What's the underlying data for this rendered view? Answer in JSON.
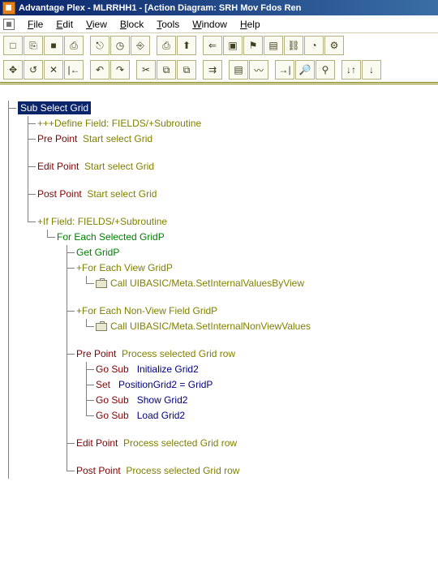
{
  "title": "Advantage Plex - MLRRHH1 - [Action Diagram: SRH Mov Fdos Ren",
  "menu": {
    "file": "File",
    "edit": "Edit",
    "view": "View",
    "block": "Block",
    "tools": "Tools",
    "window": "Window",
    "help": "Help"
  },
  "tb1": [
    "□",
    "⎘",
    "■",
    "⎙",
    "",
    "⎋",
    "◷",
    "⎆",
    "",
    "⎙",
    "⬆",
    "",
    "⇐",
    "▣",
    "⚑",
    "▤",
    "⛓",
    "◔",
    "⚙"
  ],
  "tb2": [
    "✥",
    "↺",
    "✕",
    "|←",
    "",
    "↶",
    "↷",
    "",
    "✂",
    "⧉",
    "⧉",
    "",
    "⇉",
    "",
    "▤",
    "〰",
    "",
    "→|",
    "🔎",
    "⚲",
    "",
    "↓↑",
    "↓"
  ],
  "root": {
    "sub_label": "Sub   Select Grid",
    "define": "+++Define   Field: FIELDS/+Subroutine",
    "pre_point": "Pre Point",
    "pre_point_txt": "Start select Grid",
    "edit_point": "Edit Point",
    "edit_point_txt": "Start select Grid",
    "post_point": "Post Point",
    "post_point_txt": "Start select Grid",
    "if_line": "+If   Field: FIELDS/+Subroutine",
    "for_each_sel": "For Each Selected   GridP",
    "get": "Get   GridP",
    "for_each_view": "+For Each View   GridP",
    "call1": "Call   UIBASIC/Meta.SetInternalValuesByView",
    "for_each_nv": "+For Each Non-View Field   GridP",
    "call2": "Call   UIBASIC/Meta.SetInternalNonViewValues",
    "pre2": "Pre Point",
    "pre2_txt": "Process selected Grid row",
    "gs1_k": "Go Sub",
    "gs1_v": "Initialize Grid2",
    "set_k": "Set",
    "set_v": "PositionGrid2 = GridP",
    "gs2_k": "Go Sub",
    "gs2_v": "Show Grid2",
    "gs3_k": "Go Sub",
    "gs3_v": "Load Grid2",
    "edit2": "Edit Point",
    "edit2_txt": "Process selected Grid row",
    "post2": "Post Point",
    "post2_txt": "Process selected Grid row"
  }
}
